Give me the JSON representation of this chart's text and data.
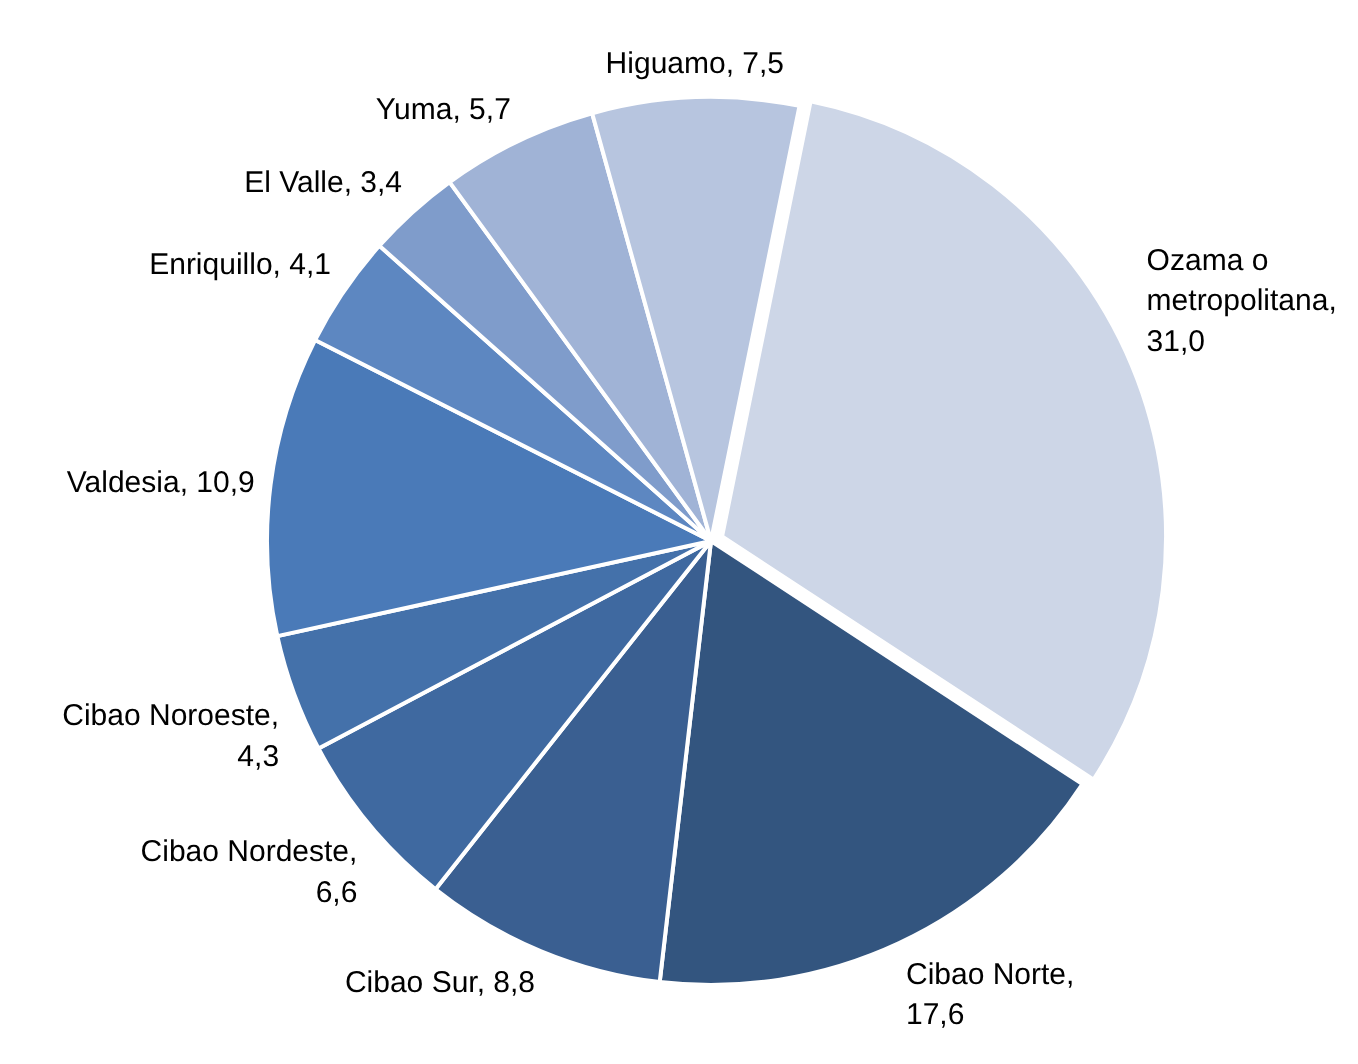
{
  "chart_data": {
    "type": "pie",
    "categories": [
      "Ozama o metropolitana, 31,0",
      "Cibao Norte, 17,6",
      "Cibao Sur, 8,8",
      "Cibao Nordeste, 6,6",
      "Cibao Noroeste, 4,3",
      "Valdesia, 10,9",
      "Enriquillo, 4,1",
      "El Valle, 3,4",
      "Yuma, 5,7",
      "Higuamo, 7,5"
    ],
    "values": [
      31.0,
      17.6,
      8.8,
      6.6,
      4.3,
      10.9,
      4.1,
      3.4,
      5.7,
      7.5
    ],
    "colors": [
      "#cdd6e7",
      "#33557f",
      "#3a5f91",
      "#3f69a0",
      "#4471aa",
      "#4a7ab8",
      "#5d87c1",
      "#7f9ccb",
      "#a0b3d6",
      "#b7c5df"
    ]
  }
}
